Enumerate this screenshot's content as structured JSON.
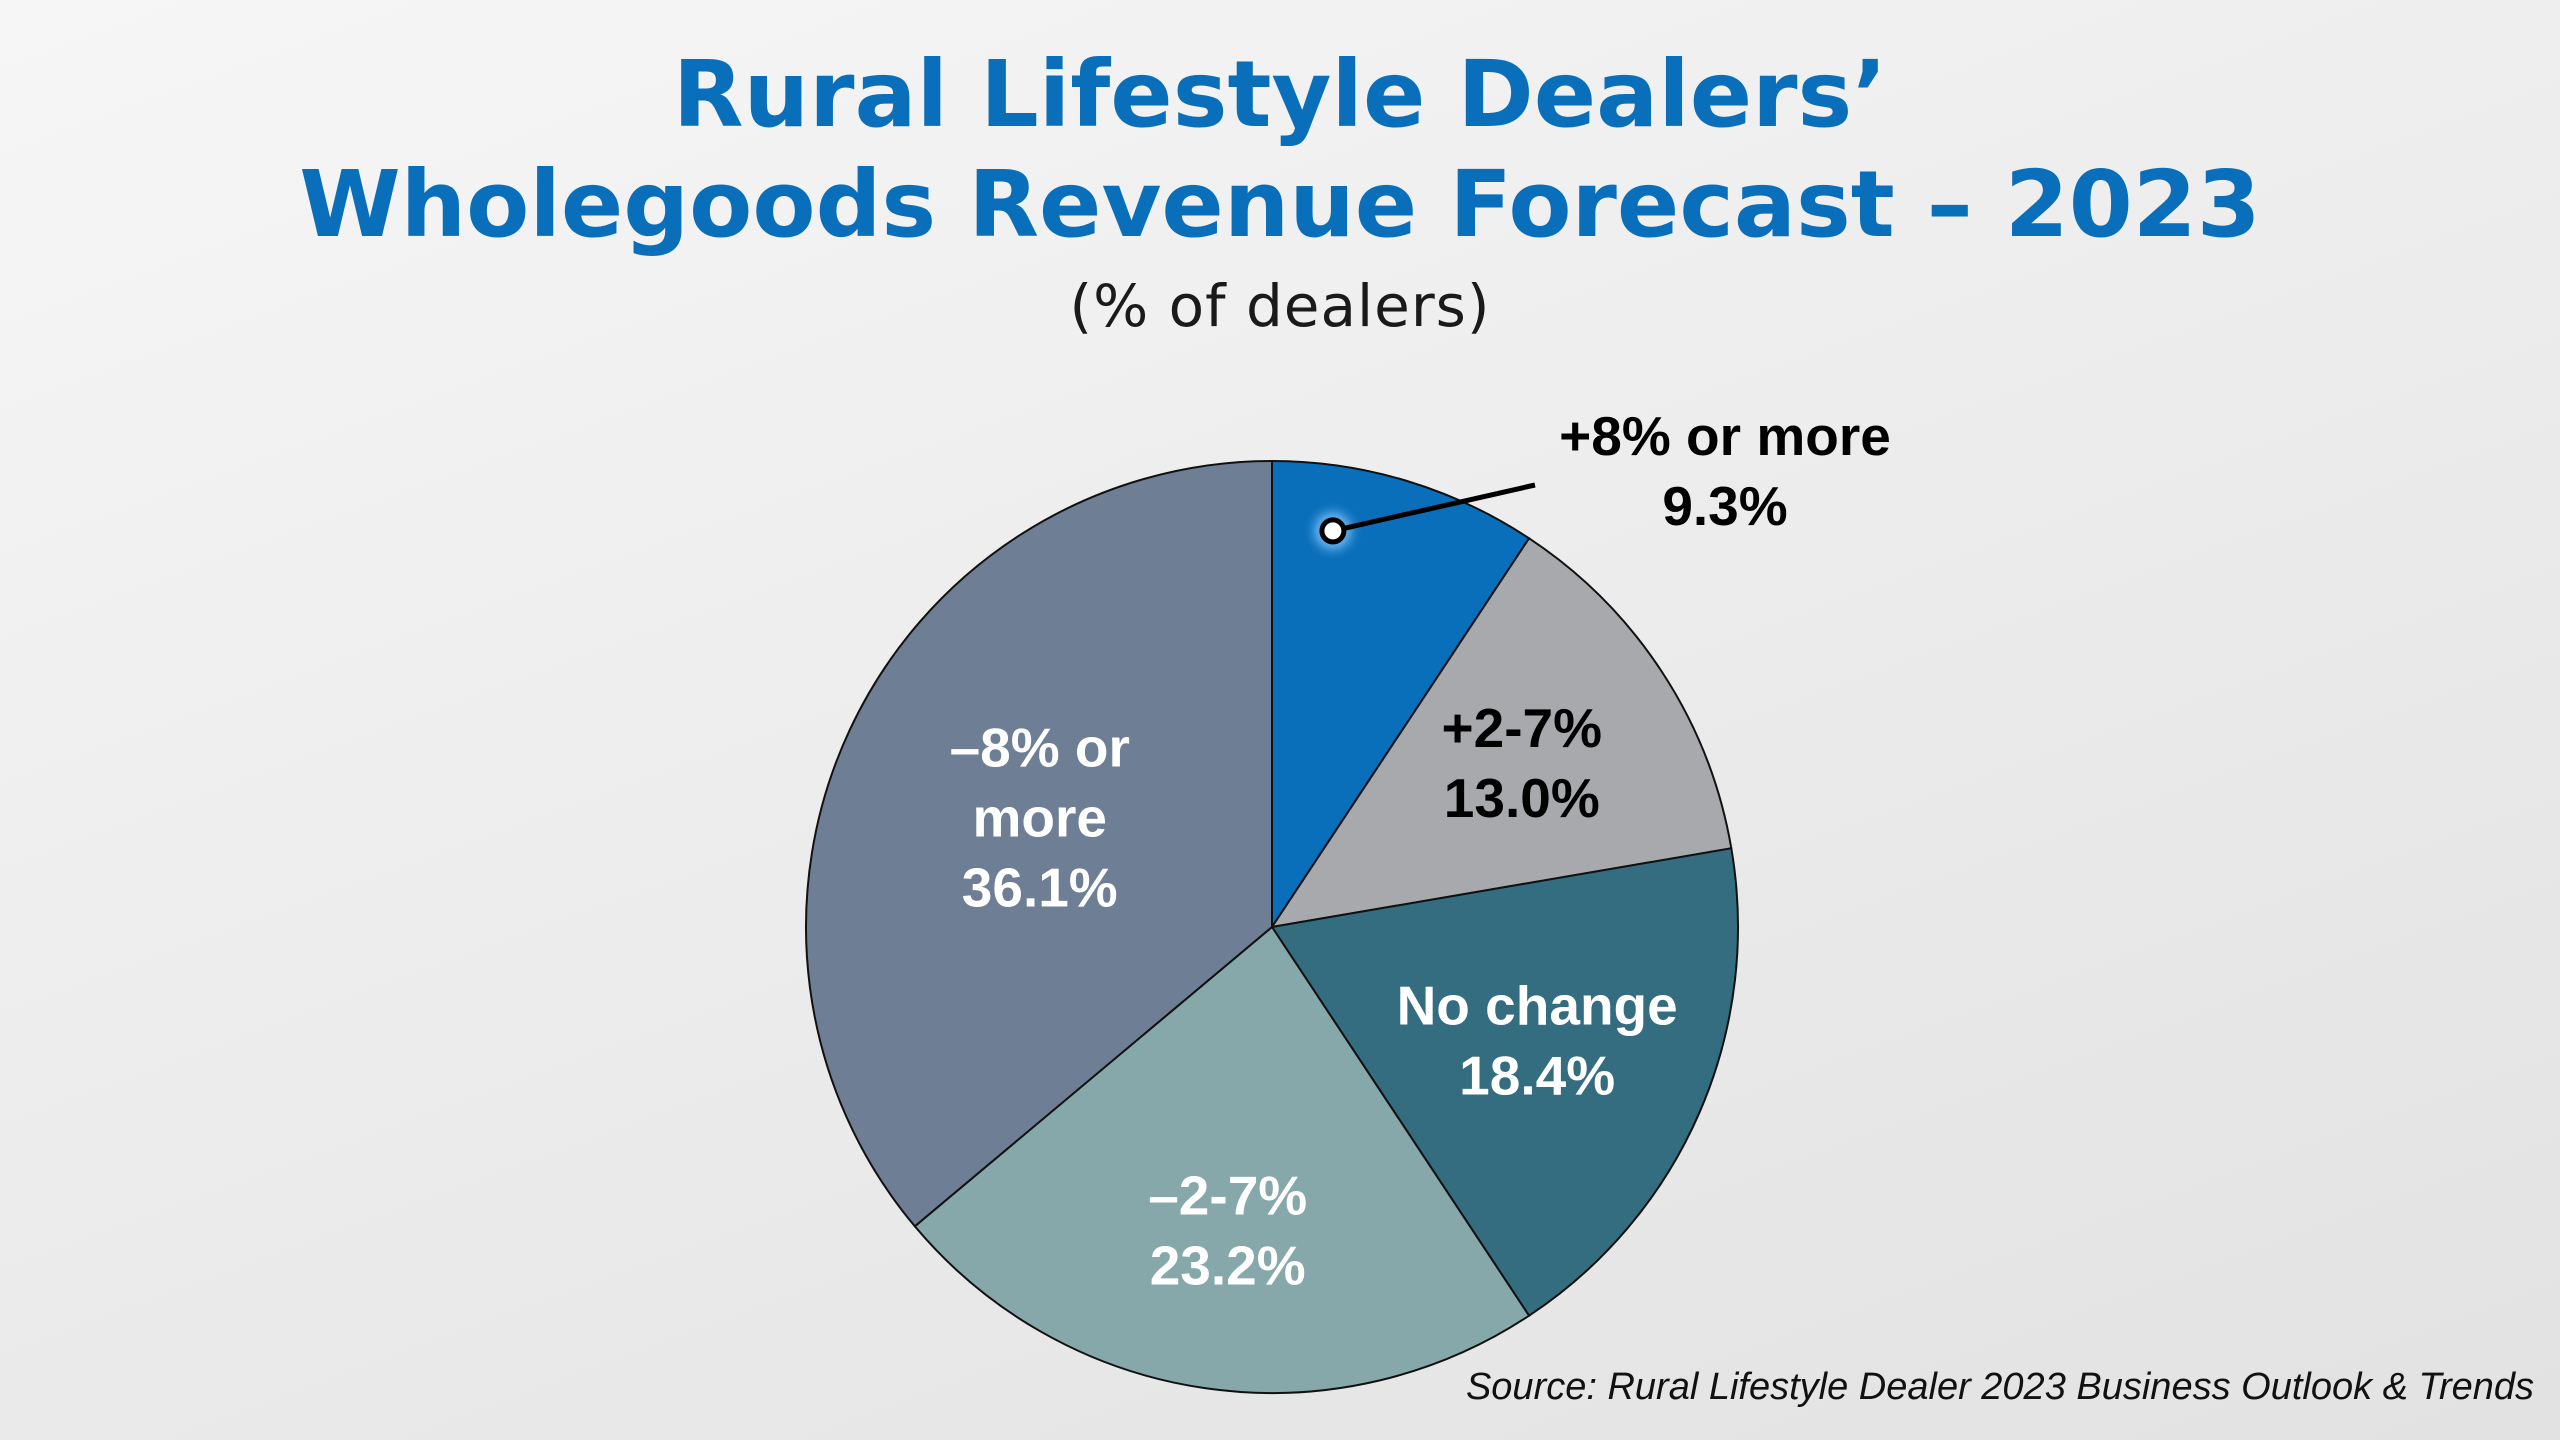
{
  "chart_data": {
    "type": "pie",
    "title_lines": [
      "Rural Lifestyle Dealers’",
      "Wholegoods Revenue Forecast – 2023"
    ],
    "subtitle": "(% of dealers)",
    "source": "Source: Rural Lifestyle Dealer 2023 Business Outlook & Trends",
    "slices": [
      {
        "label_lines": [
          "+8% or more"
        ],
        "value": 9.3,
        "value_text": "9.3%",
        "color": "#0a6fba",
        "text_color": "#000000",
        "label_placement": "callout"
      },
      {
        "label_lines": [
          "+2-7%"
        ],
        "value": 13.0,
        "value_text": "13.0%",
        "color": "#a7a9ac",
        "text_color": "#000000",
        "label_placement": "inside"
      },
      {
        "label_lines": [
          "No change"
        ],
        "value": 18.4,
        "value_text": "18.4%",
        "color": "#356d80",
        "text_color": "#ffffff",
        "label_placement": "inside"
      },
      {
        "label_lines": [
          "–2-7%"
        ],
        "value": 23.2,
        "value_text": "23.2%",
        "color": "#86a8ab",
        "text_color": "#ffffff",
        "label_placement": "inside"
      },
      {
        "label_lines": [
          "–8% or",
          "more"
        ],
        "value": 36.1,
        "value_text": "36.1%",
        "color": "#6e7f95",
        "text_color": "#ffffff",
        "label_placement": "inside"
      }
    ],
    "start_angle": "12 o'clock",
    "direction": "clockwise",
    "legend": "none"
  }
}
